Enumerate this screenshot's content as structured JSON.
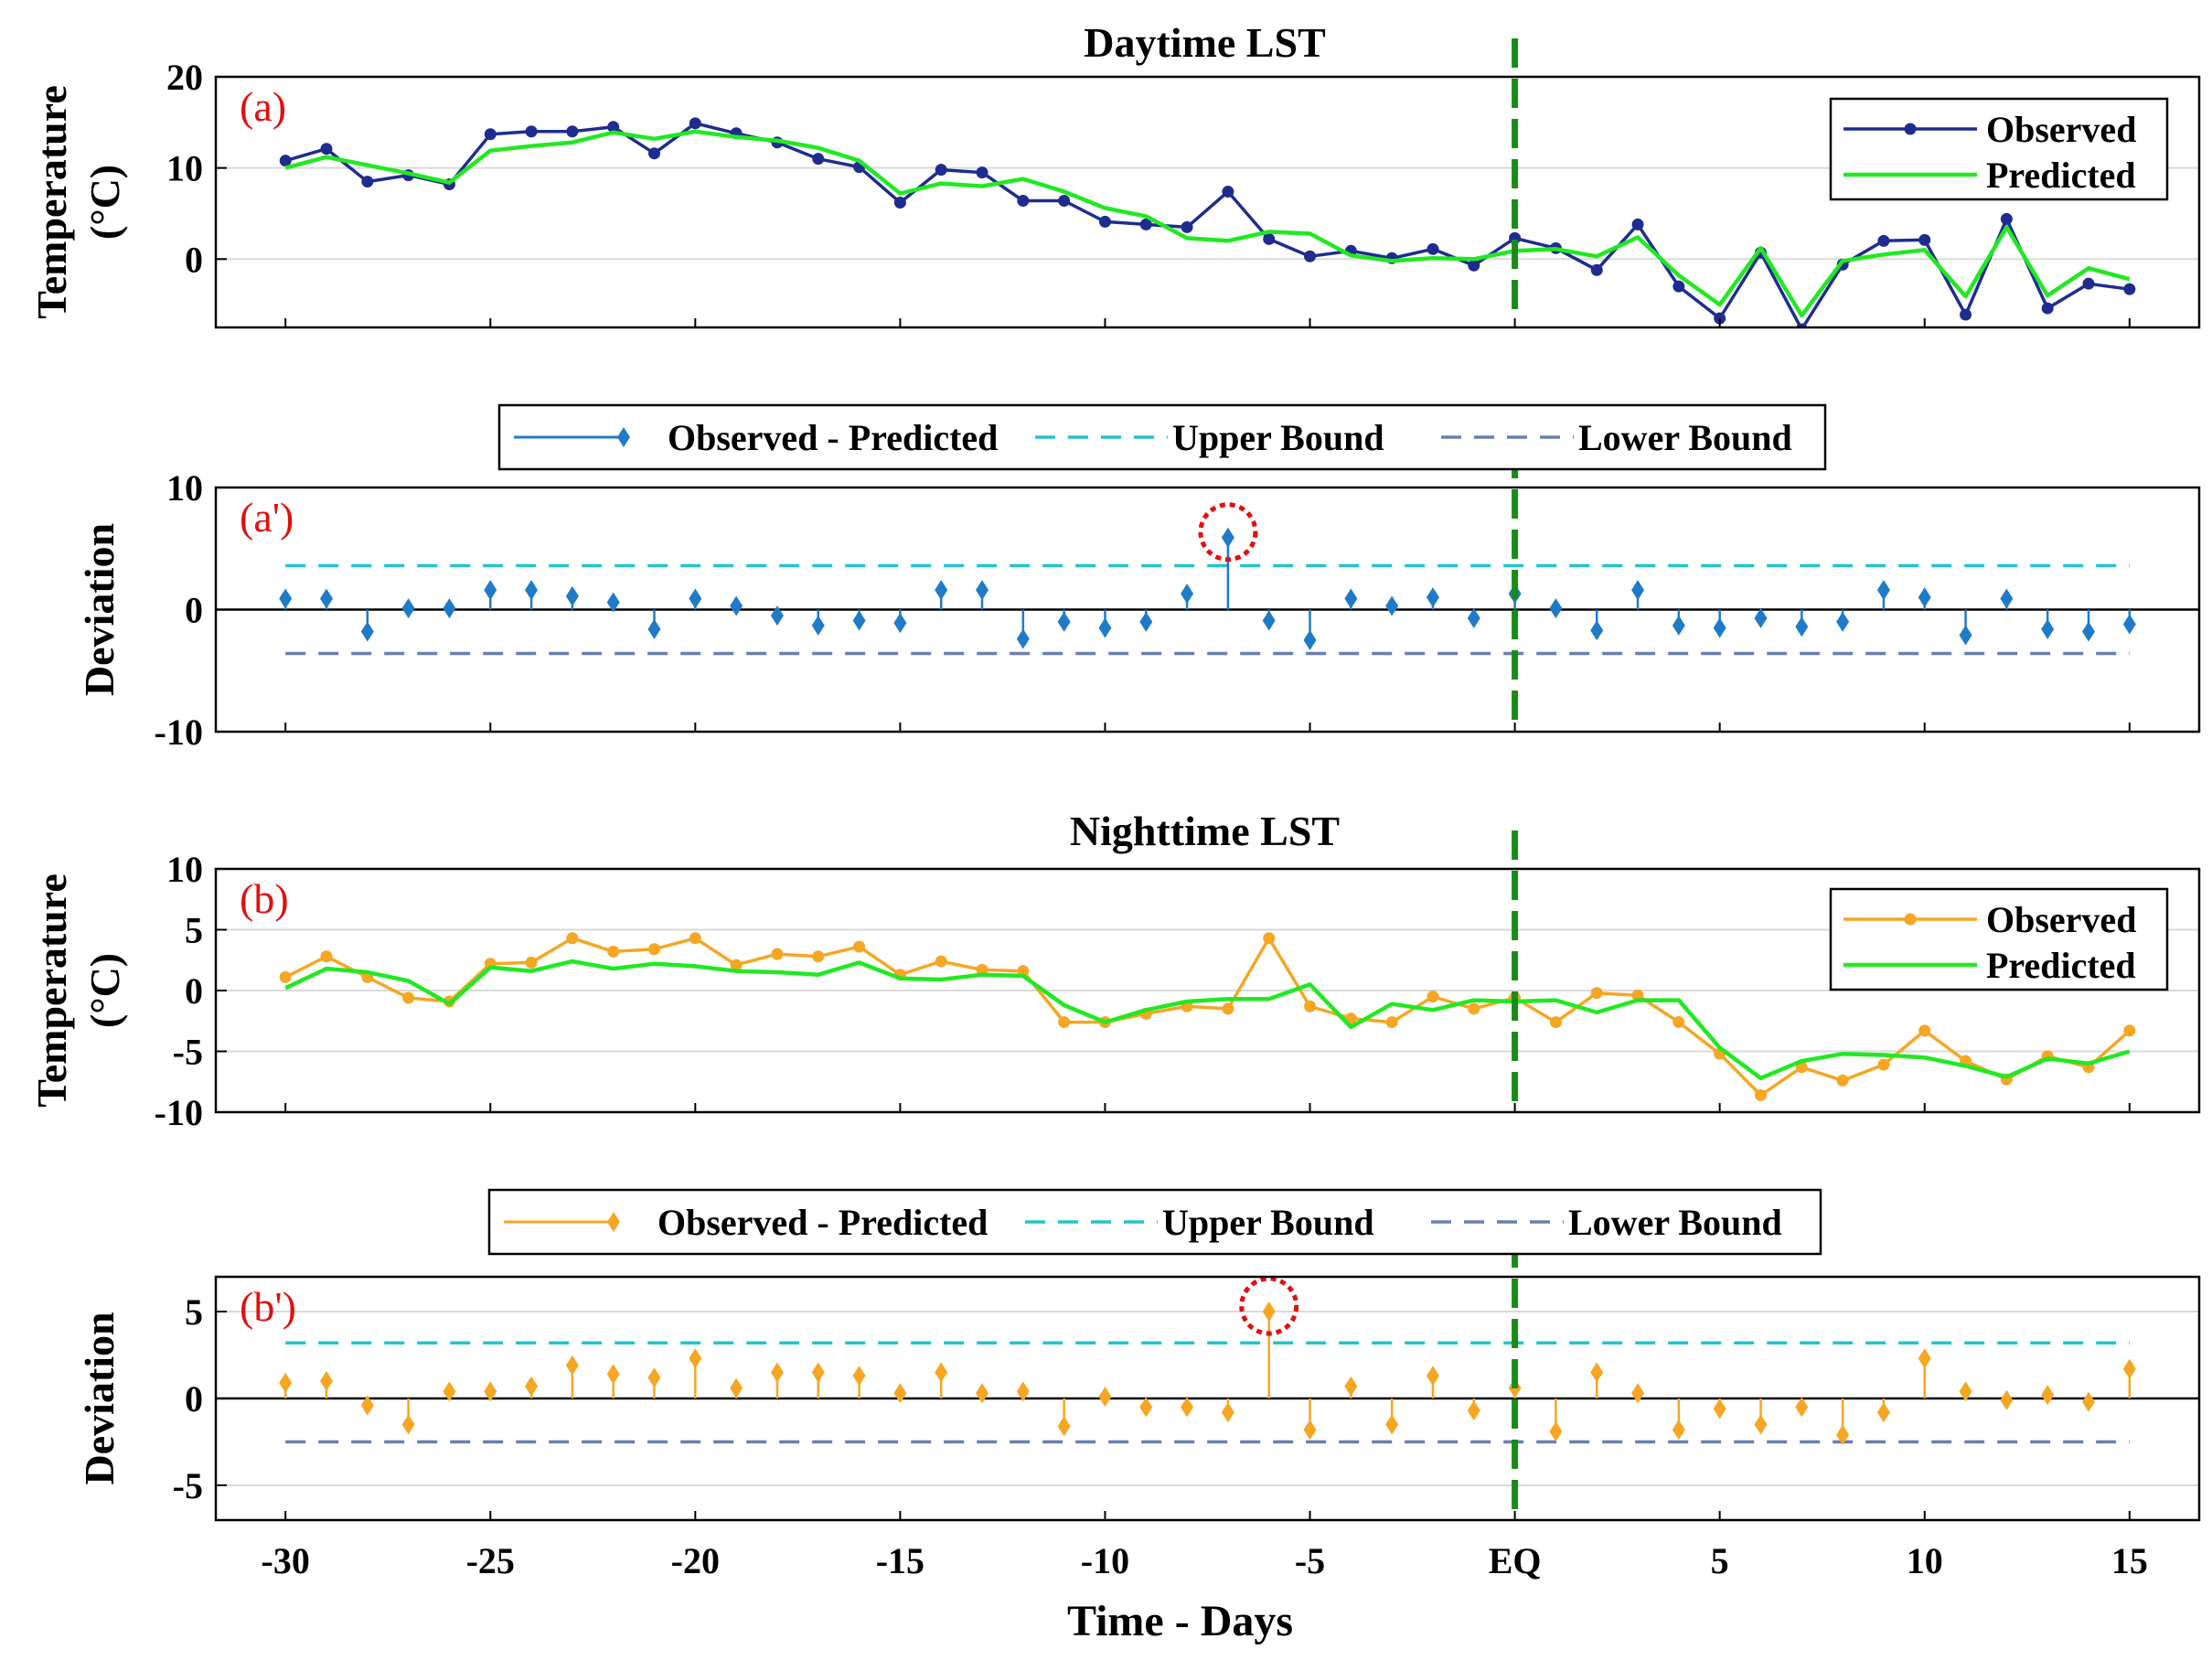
{
  "chart_data": [
    {
      "type": "line",
      "title": "Daytime LST",
      "panel_label": "(a)",
      "ylabel_lines": [
        "Temperature",
        "(°C)"
      ],
      "ylim": [
        -7.5,
        20
      ],
      "yticks": [
        0,
        10,
        20
      ],
      "x": [
        -30,
        -29,
        -28,
        -27,
        -26,
        -25,
        -24,
        -23,
        -22,
        -21,
        -20,
        -19,
        -18,
        -17,
        -16,
        -15,
        -14,
        -13,
        -12,
        -11,
        -10,
        -9,
        -8,
        -7,
        -6,
        -5,
        -4,
        -3,
        -2,
        -1,
        0,
        1,
        2,
        3,
        4,
        5,
        6,
        7,
        8,
        9,
        10,
        11,
        12,
        13,
        14,
        15
      ],
      "series": [
        {
          "name": "Observed",
          "color": "#1f2c8f",
          "marker": "dot",
          "values": [
            10.8,
            12.1,
            8.5,
            9.2,
            8.2,
            13.7,
            14.0,
            14.0,
            14.5,
            11.6,
            14.9,
            13.8,
            12.8,
            11.0,
            10.1,
            6.2,
            9.8,
            9.5,
            6.4,
            6.4,
            4.1,
            3.8,
            3.5,
            7.4,
            2.2,
            0.3,
            0.9,
            0.1,
            1.1,
            -0.7,
            2.3,
            1.2,
            -1.2,
            3.8,
            -3.0,
            -6.5,
            0.7,
            -7.7,
            -0.6,
            2.0,
            2.1,
            -6.1,
            4.4,
            -5.4,
            -2.7,
            -3.3
          ]
        },
        {
          "name": "Predicted",
          "color": "#22e822",
          "marker": "none",
          "values": [
            10.0,
            11.2,
            10.3,
            9.4,
            8.4,
            11.9,
            12.4,
            12.8,
            13.9,
            13.2,
            14.0,
            13.4,
            13.0,
            12.2,
            10.8,
            7.2,
            8.3,
            8.0,
            8.8,
            7.4,
            5.6,
            4.7,
            2.3,
            2.0,
            3.0,
            2.8,
            0.4,
            -0.2,
            0.1,
            0.0,
            0.9,
            1.1,
            0.3,
            2.4,
            -1.8,
            -5.0,
            1.2,
            -6.2,
            -0.2,
            0.5,
            1.0,
            -4.1,
            3.5,
            -4.0,
            -1.0,
            -2.2
          ]
        }
      ],
      "reference_line": {
        "x": 0,
        "color": "#1a8a1a",
        "style": "dashed"
      }
    },
    {
      "type": "stem",
      "panel_label": "(a')",
      "ylabel": "Deviation",
      "ylim": [
        -10,
        10
      ],
      "yticks": [
        -10,
        0,
        10
      ],
      "x": [
        -30,
        -29,
        -28,
        -27,
        -26,
        -25,
        -24,
        -23,
        -22,
        -21,
        -20,
        -19,
        -18,
        -17,
        -16,
        -15,
        -14,
        -13,
        -12,
        -11,
        -10,
        -9,
        -8,
        -7,
        -6,
        -5,
        -4,
        -3,
        -2,
        -1,
        0,
        1,
        2,
        3,
        4,
        5,
        6,
        7,
        8,
        9,
        10,
        11,
        12,
        13,
        14,
        15
      ],
      "series": [
        {
          "name": "Observed - Predicted",
          "color": "#1f7bc8",
          "marker": "diamond",
          "values": [
            0.9,
            0.9,
            -1.8,
            0.1,
            0.1,
            1.6,
            1.6,
            1.1,
            0.6,
            -1.6,
            0.9,
            0.3,
            -0.5,
            -1.3,
            -0.9,
            -1.1,
            1.6,
            1.6,
            -2.4,
            -1.0,
            -1.5,
            -1.0,
            1.3,
            5.9,
            -0.9,
            -2.5,
            0.9,
            0.3,
            1.0,
            -0.7,
            1.3,
            0.1,
            -1.7,
            1.6,
            -1.3,
            -1.5,
            -0.7,
            -1.4,
            -1.0,
            1.6,
            1.0,
            -2.1,
            0.9,
            -1.6,
            -1.8,
            -1.2
          ]
        }
      ],
      "upper_bound": {
        "name": "Upper Bound",
        "value": 3.6,
        "color": "#22c4cc"
      },
      "lower_bound": {
        "name": "Lower Bound",
        "value": -3.6,
        "color": "#6a7fb0"
      },
      "highlight_x": -7,
      "reference_line": {
        "x": 0,
        "color": "#1a8a1a",
        "style": "dashed"
      }
    },
    {
      "type": "line",
      "title": "Nighttime LST",
      "panel_label": "(b)",
      "ylabel_lines": [
        "Temperature",
        "(°C)"
      ],
      "ylim": [
        -10,
        10
      ],
      "yticks": [
        -10,
        -5,
        0,
        5,
        10
      ],
      "x": [
        -30,
        -29,
        -28,
        -27,
        -26,
        -25,
        -24,
        -23,
        -22,
        -21,
        -20,
        -19,
        -18,
        -17,
        -16,
        -15,
        -14,
        -13,
        -12,
        -11,
        -10,
        -9,
        -8,
        -7,
        -6,
        -5,
        -4,
        -3,
        -2,
        -1,
        0,
        1,
        2,
        3,
        4,
        5,
        6,
        7,
        8,
        9,
        10,
        11,
        12,
        13,
        14,
        15
      ],
      "series": [
        {
          "name": "Observed",
          "color": "#f5a623",
          "marker": "dot",
          "values": [
            1.1,
            2.8,
            1.1,
            -0.6,
            -0.9,
            2.2,
            2.3,
            4.3,
            3.2,
            3.4,
            4.3,
            2.1,
            3.0,
            2.8,
            3.6,
            1.3,
            2.4,
            1.7,
            1.6,
            -2.6,
            -2.6,
            -1.9,
            -1.3,
            -1.5,
            4.3,
            -1.3,
            -2.3,
            -2.6,
            -0.5,
            -1.5,
            -0.6,
            -2.6,
            -0.2,
            -0.4,
            -2.6,
            -5.2,
            -8.6,
            -6.3,
            -7.4,
            -6.1,
            -3.3,
            -5.8,
            -7.3,
            -5.4,
            -6.3,
            -3.3
          ]
        },
        {
          "name": "Predicted",
          "color": "#22e822",
          "marker": "none",
          "values": [
            0.2,
            1.8,
            1.5,
            0.8,
            -1.1,
            1.9,
            1.6,
            2.4,
            1.8,
            2.2,
            2.0,
            1.6,
            1.5,
            1.3,
            2.3,
            1.0,
            0.9,
            1.3,
            1.2,
            -1.2,
            -2.6,
            -1.6,
            -0.9,
            -0.7,
            -0.7,
            0.5,
            -3.0,
            -1.1,
            -1.6,
            -0.8,
            -0.9,
            -0.8,
            -1.8,
            -0.8,
            -0.8,
            -4.7,
            -7.2,
            -5.8,
            -5.2,
            -5.3,
            -5.5,
            -6.2,
            -7.1,
            -5.6,
            -6.0,
            -5.0
          ]
        }
      ],
      "reference_line": {
        "x": 0,
        "color": "#1a8a1a",
        "style": "dashed"
      }
    },
    {
      "type": "stem",
      "panel_label": "(b')",
      "ylabel": "Deviation",
      "ylim": [
        -7,
        7
      ],
      "yticks": [
        -5,
        0,
        5
      ],
      "xlabel": "Time - Days",
      "xtick_values": [
        -30,
        -25,
        -20,
        -15,
        -10,
        -5,
        0,
        5,
        10,
        15
      ],
      "xtick_labels": [
        "-30",
        "-25",
        "-20",
        "-15",
        "-10",
        "-5",
        "EQ",
        "5",
        "10",
        "15"
      ],
      "x": [
        -30,
        -29,
        -28,
        -27,
        -26,
        -25,
        -24,
        -23,
        -22,
        -21,
        -20,
        -19,
        -18,
        -17,
        -16,
        -15,
        -14,
        -13,
        -12,
        -11,
        -10,
        -9,
        -8,
        -7,
        -6,
        -5,
        -4,
        -3,
        -2,
        -1,
        0,
        1,
        2,
        3,
        4,
        5,
        6,
        7,
        8,
        9,
        10,
        11,
        12,
        13,
        14,
        15
      ],
      "series": [
        {
          "name": "Observed - Predicted",
          "color": "#f5a623",
          "marker": "diamond",
          "values": [
            0.9,
            1.0,
            -0.4,
            -1.5,
            0.4,
            0.4,
            0.7,
            1.9,
            1.4,
            1.2,
            2.3,
            0.6,
            1.5,
            1.5,
            1.3,
            0.3,
            1.5,
            0.3,
            0.4,
            -1.6,
            0.1,
            -0.5,
            -0.5,
            -0.8,
            5.0,
            -1.8,
            0.7,
            -1.5,
            1.3,
            -0.7,
            0.6,
            -1.9,
            1.5,
            0.3,
            -1.8,
            -0.6,
            -1.5,
            -0.5,
            -2.1,
            -0.8,
            2.3,
            0.4,
            -0.1,
            0.2,
            -0.2,
            1.7
          ]
        }
      ],
      "upper_bound": {
        "name": "Upper Bound",
        "value": 3.2,
        "color": "#22c4cc"
      },
      "lower_bound": {
        "name": "Lower Bound",
        "value": -2.5,
        "color": "#6a7fb0"
      },
      "highlight_x": -6,
      "reference_line": {
        "x": 0,
        "color": "#1a8a1a",
        "style": "dashed"
      }
    }
  ]
}
